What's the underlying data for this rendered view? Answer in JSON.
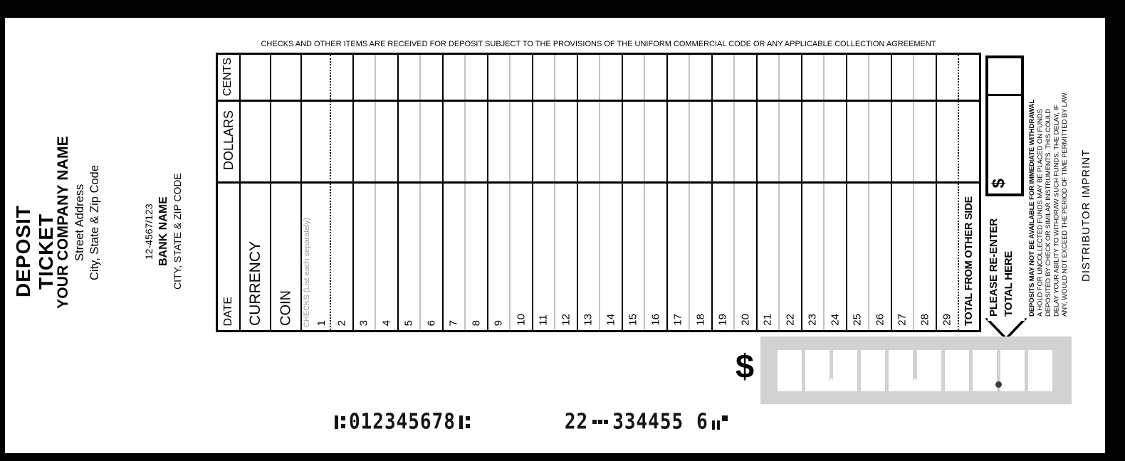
{
  "ticket": {
    "left_panel": {
      "title": "DEPOSIT TICKET",
      "company": {
        "name": "YOUR COMPANY NAME",
        "address_line1": "Street Address",
        "address_line2": "City, State & Zip Code"
      },
      "bank": {
        "transit_fraction": "12-4567/123",
        "name": "BANK NAME",
        "city_line": "CITY, STATE & ZIP CODE"
      }
    },
    "disclaimer": "CHECKS AND OTHER ITEMS ARE RECEIVED FOR DEPOSIT SUBJECT TO THE PROVISIONS OF THE UNIFORM COMMERCIAL CODE OR ANY APPLICABLE COLLECTION AGREEMENT",
    "table": {
      "column_headers": {
        "cents": "CENTS",
        "dollars": "DOLLARS"
      },
      "row_labels": {
        "date": "DATE",
        "currency": "CURRENCY",
        "coin": "COIN",
        "checks_hint": "CHECKS (List each separately)",
        "total_from_other_side": "TOTAL FROM OTHER SIDE"
      },
      "check_numbers": [
        1,
        2,
        3,
        4,
        5,
        6,
        7,
        8,
        9,
        10,
        11,
        12,
        13,
        14,
        15,
        16,
        17,
        18,
        19,
        20,
        21,
        22,
        23,
        24,
        25,
        26,
        27,
        28,
        29
      ]
    },
    "reenter": {
      "line1": "PLEASE RE-ENTER",
      "line2": "TOTAL HERE",
      "box_dollar_sign": "$"
    },
    "legal": {
      "lines": [
        "DEPOSITS MAY NOT BE AVAILABLE FOR IMMEDIATE WITHDRAWAL",
        "A HOLD FOR UNCOLLECTED FUNDS MAY BE PLACED ON FUNDS",
        "DEPOSITED BY CHECK OR SIMILAR INSTRUMENTS. THIS COULD",
        "DELAY YOUR ABILITY TO WITHDRAW SUCH FUNDS. THE DELAY, IF",
        "ANY, WOULD NOT EXCEED THE PERIOD OF TIME PERMITTED BY LAW."
      ]
    },
    "distributor_imprint": "DISTRIBUTOR IMPRINT",
    "amount_entry": {
      "dollar_sign": "$",
      "box_count": 10,
      "separators": [
        {
          "kind": "comma",
          "after_box": 2
        },
        {
          "kind": "comma",
          "after_box": 5
        },
        {
          "kind": "decimal",
          "after_box": 8
        }
      ]
    },
    "micr": {
      "segments": [
        {
          "kind": "transit"
        },
        {
          "kind": "digits",
          "text": "012345678"
        },
        {
          "kind": "transit"
        },
        {
          "kind": "space",
          "w": 128
        },
        {
          "kind": "digits",
          "text": "22"
        },
        {
          "kind": "dash"
        },
        {
          "kind": "digits",
          "text": "334455"
        },
        {
          "kind": "space",
          "w": 18
        },
        {
          "kind": "digits",
          "text": "6"
        },
        {
          "kind": "onus"
        }
      ]
    }
  },
  "colors": {
    "ink": "#000000",
    "grid_light_line": "#c3c3c3",
    "amount_area_gray": "#d2d2d2",
    "hint_gray": "#9a9a9a"
  }
}
